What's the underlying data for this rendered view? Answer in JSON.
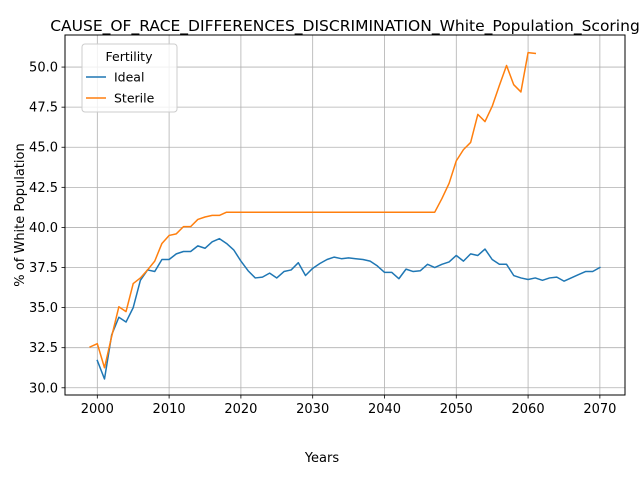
{
  "chart_data": {
    "type": "line",
    "title": "CAUSE_OF_RACE_DIFFERENCES_DISCRIMINATION_White_Population_Scoring",
    "xlabel": "Years",
    "ylabel": "% of White Population",
    "xlim": [
      1995.5,
      2073.5
    ],
    "ylim": [
      29.55,
      52.0
    ],
    "xticks": [
      2000,
      2010,
      2020,
      2030,
      2040,
      2050,
      2060,
      2070
    ],
    "yticks": [
      30.0,
      32.5,
      35.0,
      37.5,
      40.0,
      42.5,
      45.0,
      47.5,
      50.0
    ],
    "xtick_labels": [
      "2000",
      "2010",
      "2020",
      "2030",
      "2040",
      "2050",
      "2060",
      "2070"
    ],
    "ytick_labels": [
      "30.0",
      "32.5",
      "35.0",
      "37.5",
      "40.0",
      "42.5",
      "45.0",
      "47.5",
      "50.0"
    ],
    "grid": true,
    "legend": {
      "title": "Fertility",
      "placement": "top-left"
    },
    "series": [
      {
        "name": "Ideal",
        "color": "#1f77b4",
        "x": [
          2000,
          2001,
          2002,
          2003,
          2004,
          2005,
          2006,
          2007,
          2008,
          2009,
          2010,
          2011,
          2012,
          2013,
          2014,
          2015,
          2016,
          2017,
          2018,
          2019,
          2020,
          2021,
          2022,
          2023,
          2024,
          2025,
          2026,
          2027,
          2028,
          2029,
          2030,
          2031,
          2032,
          2033,
          2034,
          2035,
          2036,
          2037,
          2038,
          2039,
          2040,
          2041,
          2042,
          2043,
          2044,
          2045,
          2046,
          2047,
          2048,
          2049,
          2050,
          2051,
          2052,
          2053,
          2054,
          2055,
          2056,
          2057,
          2058,
          2059,
          2060,
          2061,
          2062,
          2063,
          2064,
          2065,
          2066,
          2067,
          2068,
          2069,
          2070
        ],
        "values": [
          31.7,
          30.55,
          33.3,
          34.4,
          34.1,
          35.0,
          36.7,
          37.35,
          37.25,
          38.0,
          38.0,
          38.35,
          38.5,
          38.5,
          38.85,
          38.7,
          39.1,
          39.3,
          39.0,
          38.6,
          37.9,
          37.3,
          36.85,
          36.9,
          37.15,
          36.85,
          37.25,
          37.35,
          37.8,
          37.0,
          37.45,
          37.75,
          38.0,
          38.15,
          38.05,
          38.1,
          38.05,
          38.0,
          37.9,
          37.6,
          37.2,
          37.2,
          36.8,
          37.4,
          37.25,
          37.3,
          37.7,
          37.5,
          37.7,
          37.85,
          38.25,
          37.9,
          38.35,
          38.25,
          38.65,
          38.0,
          37.7,
          37.7,
          37.0,
          36.85,
          36.75,
          36.85,
          36.7,
          36.85,
          36.9,
          36.65,
          36.85,
          37.05,
          37.25,
          37.25,
          37.5
        ]
      },
      {
        "name": "Sterile",
        "color": "#ff7f0e",
        "x": [
          1999,
          2000,
          2001,
          2002,
          2003,
          2004,
          2005,
          2006,
          2007,
          2008,
          2009,
          2010,
          2011,
          2012,
          2013,
          2014,
          2015,
          2016,
          2017,
          2018,
          2019,
          2020,
          2021,
          2022,
          2023,
          2024,
          2025,
          2026,
          2027,
          2028,
          2029,
          2030,
          2031,
          2032,
          2033,
          2034,
          2035,
          2036,
          2037,
          2038,
          2039,
          2040,
          2041,
          2042,
          2043,
          2044,
          2045,
          2046,
          2047,
          2048,
          2049,
          2050,
          2051,
          2052,
          2053,
          2054,
          2055,
          2056,
          2057,
          2058,
          2059,
          2060,
          2061
        ],
        "values": [
          32.55,
          32.75,
          31.25,
          33.2,
          35.05,
          34.75,
          36.5,
          36.85,
          37.35,
          37.9,
          39.0,
          39.5,
          39.6,
          40.05,
          40.05,
          40.5,
          40.65,
          40.75,
          40.75,
          40.95,
          40.95,
          40.95,
          40.95,
          40.95,
          40.95,
          40.95,
          40.95,
          40.95,
          40.95,
          40.95,
          40.95,
          40.95,
          40.95,
          40.95,
          40.95,
          40.95,
          40.95,
          40.95,
          40.95,
          40.95,
          40.95,
          40.95,
          40.95,
          40.95,
          40.95,
          40.95,
          40.95,
          40.95,
          40.95,
          41.8,
          42.75,
          44.15,
          44.85,
          45.3,
          47.05,
          46.6,
          47.55,
          48.85,
          50.1,
          48.9,
          48.45,
          50.9,
          50.85
        ]
      }
    ]
  }
}
